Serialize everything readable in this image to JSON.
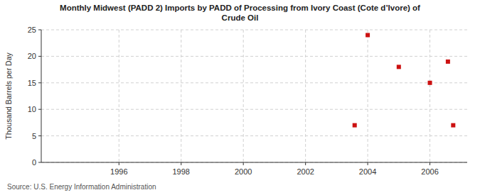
{
  "chart_data": {
    "type": "scatter",
    "title": "Monthly Midwest (PADD 2) Imports by PADD of Processing from Ivory Coast (Cote d’Ivore) of\nCrude Oil",
    "y_label": "Thousand Barrels per Day",
    "source": "Source: U.S. Energy Information Administration",
    "x": [
      2003.58,
      2004.0,
      2005.0,
      2006.0,
      2006.58,
      2006.75
    ],
    "values": [
      7,
      24,
      18,
      15,
      19,
      7
    ],
    "color": "#cc1111",
    "marker": "square",
    "xlim": [
      1993.5,
      2007.2
    ],
    "ylim": [
      0,
      25
    ],
    "xticks": [
      1996,
      1998,
      2000,
      2002,
      2004,
      2006
    ],
    "yticks": [
      0,
      5,
      10,
      15,
      20,
      25
    ],
    "grid": true
  }
}
